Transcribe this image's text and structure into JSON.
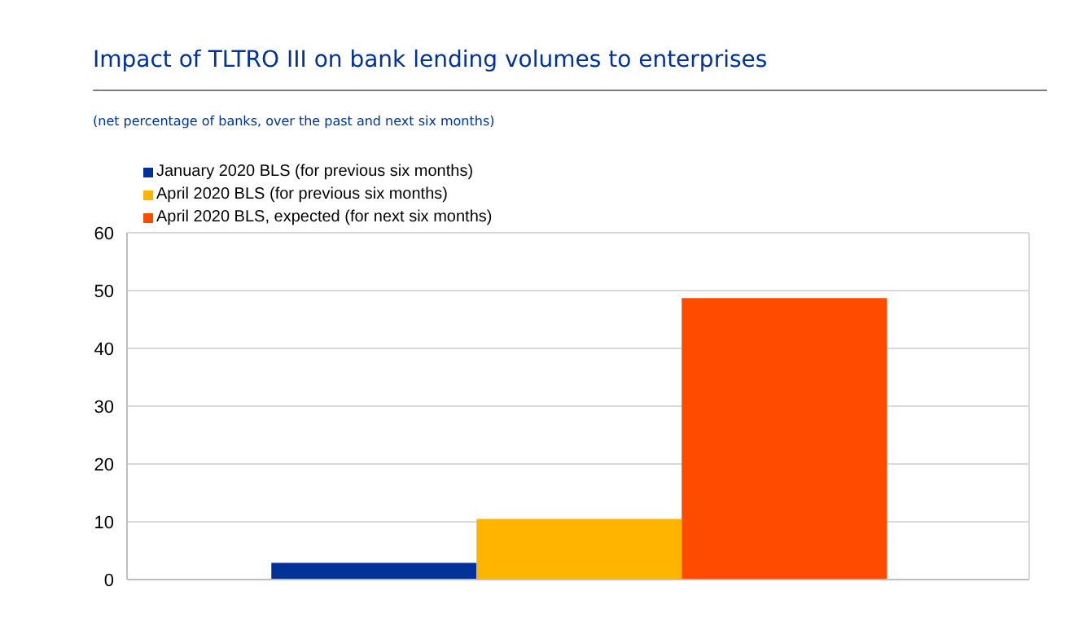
{
  "chart_data": {
    "type": "bar",
    "title": "Impact of TLTRO III on bank lending volumes to enterprises",
    "subtitle": "(net percentage of banks, over the past and next six months)",
    "categories": [
      null
    ],
    "series": [
      {
        "name": "January 2020 BLS (for previous six months)",
        "color": "#003299",
        "values": [
          2.9
        ]
      },
      {
        "name": "April 2020 BLS (for previous six months)",
        "color": "#ffb400",
        "values": [
          10.5
        ]
      },
      {
        "name": "April 2020 BLS, expected (for next six months)",
        "color": "#ff4b00",
        "values": [
          48.7
        ]
      }
    ],
    "ylim": [
      0,
      60
    ],
    "yticks": [
      0,
      10,
      20,
      30,
      40,
      50,
      60
    ],
    "grid": "y",
    "legend": "top left"
  }
}
